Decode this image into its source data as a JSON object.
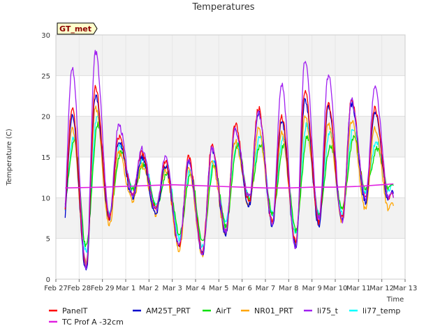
{
  "chart_data": {
    "type": "line",
    "title": "Temperatures",
    "xlabel": "Time",
    "ylabel": "Temperature (C)",
    "station_tag": "GT_met",
    "ylim": [
      0,
      30
    ],
    "xlim": [
      0,
      15
    ],
    "grid": true,
    "banded_background": true,
    "y_ticks": [
      0,
      5,
      10,
      15,
      20,
      25,
      30
    ],
    "x_ticks": [
      "Feb 27",
      "Feb 28",
      "Feb 29",
      "Mar 1",
      "Mar 2",
      "Mar 3",
      "Mar 4",
      "Mar 5",
      "Mar 6",
      "Mar 7",
      "Mar 8",
      "Mar 9",
      "Mar 10",
      "Mar 11",
      "Mar 12",
      "Mar 13"
    ],
    "legend_position": "bottom",
    "series": [
      {
        "name": "PanelT",
        "color": "#ff0000",
        "day_offset": 0.05,
        "mins": [
          6.5,
          1.5,
          7.5,
          10.5,
          8.5,
          4.0,
          3.5,
          6.0,
          9.5,
          7.0,
          4.5,
          7.0,
          7.5,
          10.0
        ],
        "maxs": [
          21.0,
          23.5,
          17.5,
          15.5,
          14.5,
          15.0,
          16.5,
          19.0,
          21.0,
          20.0,
          23.0,
          21.5,
          22.0,
          21.0
        ],
        "end": 10.0
      },
      {
        "name": "AM25T_PRT",
        "color": "#0000cd",
        "day_offset": 0.05,
        "mins": [
          5.5,
          1.0,
          7.5,
          10.0,
          8.0,
          4.0,
          3.0,
          5.5,
          9.0,
          6.5,
          4.0,
          6.5,
          7.0,
          9.5
        ],
        "maxs": [
          20.0,
          22.5,
          17.0,
          15.0,
          14.0,
          14.5,
          16.0,
          18.5,
          20.5,
          19.5,
          22.0,
          21.0,
          21.5,
          20.5
        ],
        "end": 10.5
      },
      {
        "name": "AirT",
        "color": "#00e000",
        "day_offset": 0.15,
        "mins": [
          8.5,
          4.0,
          8.0,
          11.0,
          9.0,
          5.5,
          4.5,
          6.5,
          10.0,
          8.0,
          6.0,
          8.0,
          8.5,
          11.0
        ],
        "maxs": [
          17.0,
          19.0,
          15.5,
          14.0,
          13.0,
          13.0,
          14.0,
          16.5,
          16.5,
          16.5,
          17.5,
          16.5,
          17.5,
          16.0
        ],
        "end": 11.5
      },
      {
        "name": "NR01_PRT",
        "color": "#ffa500",
        "day_offset": 0.05,
        "mins": [
          7.0,
          2.0,
          6.5,
          9.5,
          8.0,
          3.5,
          3.0,
          5.5,
          9.0,
          7.0,
          4.5,
          7.0,
          7.0,
          8.5
        ],
        "maxs": [
          18.5,
          21.0,
          15.5,
          14.0,
          13.5,
          13.5,
          14.5,
          17.0,
          18.5,
          18.0,
          20.0,
          19.0,
          19.5,
          18.5
        ],
        "end": 9.0
      },
      {
        "name": "li75_t",
        "color": "#a020f0",
        "day_offset": 0.05,
        "mins": [
          6.0,
          1.5,
          8.0,
          10.5,
          8.5,
          4.5,
          3.0,
          6.0,
          10.0,
          7.0,
          3.5,
          7.5,
          7.0,
          10.0
        ],
        "maxs": [
          26.0,
          28.0,
          19.0,
          16.0,
          15.0,
          14.5,
          16.0,
          18.5,
          20.5,
          24.0,
          27.0,
          25.0,
          22.0,
          23.5
        ],
        "end": 10.0
      },
      {
        "name": "li77_temp",
        "color": "#00ffff",
        "day_offset": 0.12,
        "mins": [
          7.5,
          3.5,
          8.0,
          11.0,
          9.0,
          5.0,
          4.0,
          7.0,
          10.0,
          8.0,
          5.5,
          8.0,
          8.0,
          10.5
        ],
        "maxs": [
          17.5,
          20.0,
          16.5,
          15.0,
          14.0,
          13.5,
          14.5,
          16.5,
          17.5,
          17.5,
          19.0,
          18.0,
          18.5,
          17.0
        ],
        "end": 11.5
      },
      {
        "name": "TC Prof A -32cm",
        "color": "#e020e0",
        "constant": true,
        "points": [
          [
            0.4,
            11.2
          ],
          [
            2,
            11.3
          ],
          [
            3,
            11.4
          ],
          [
            4,
            11.5
          ],
          [
            5,
            11.6
          ],
          [
            6,
            11.5
          ],
          [
            7,
            11.4
          ],
          [
            8,
            11.3
          ],
          [
            9,
            11.2
          ],
          [
            10,
            11.2
          ],
          [
            11,
            11.3
          ],
          [
            12,
            11.3
          ],
          [
            13,
            11.4
          ],
          [
            14,
            11.6
          ],
          [
            14.5,
            11.7
          ]
        ]
      }
    ]
  }
}
